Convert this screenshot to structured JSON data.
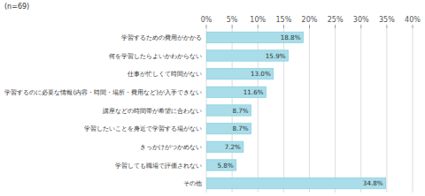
{
  "chart_data": {
    "type": "bar",
    "orientation": "horizontal",
    "title": "(n=69)",
    "categories": [
      "学習するための費用がかかる",
      "何を学習したらよいかわからない",
      "仕事が忙しくて時間がない",
      "学習するのに必要な情報(内容・時間・場所・費用など)が入手できない",
      "講座などの時間帯が希望に合わない",
      "学習したいことを身近で学習する場がない",
      "きっかけがつかめない",
      "学習しても職場で評価されない",
      "その他"
    ],
    "values": [
      18.8,
      15.9,
      13.0,
      11.6,
      8.7,
      8.7,
      7.2,
      5.8,
      34.8
    ],
    "value_labels": [
      "18.8%",
      "15.9%",
      "13.0%",
      "11.6%",
      "8.7%",
      "8.7%",
      "7.2%",
      "5.8%",
      "34.8%"
    ],
    "data_labels": true,
    "color": "#a8dde9",
    "xlim": [
      0,
      40
    ],
    "xticks": [
      {
        "value": 0,
        "label": "0%"
      },
      {
        "value": 5,
        "label": "5%"
      },
      {
        "value": 10,
        "label": "10%"
      },
      {
        "value": 15,
        "label": "15%"
      },
      {
        "value": 20,
        "label": "20%"
      },
      {
        "value": 25,
        "label": "25%"
      },
      {
        "value": 30,
        "label": "30%"
      },
      {
        "value": 35,
        "label": "35%"
      },
      {
        "value": 40,
        "label": "40%"
      }
    ],
    "grid": true
  }
}
